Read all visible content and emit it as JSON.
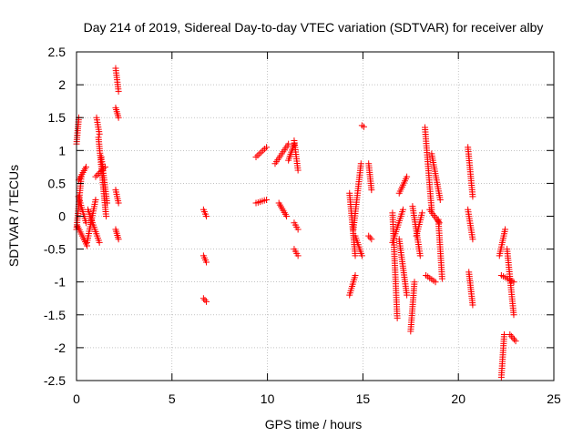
{
  "colors": {
    "series": "#ff0000",
    "axis": "#000000",
    "grid": "#a0a0a0",
    "background": "#ffffff"
  },
  "chart_data": {
    "type": "scatter",
    "title": "Day 214 of 2019, Sidereal Day-to-day VTEC variation (SDTVAR) for receiver alby",
    "xlabel": "GPS time / hours",
    "ylabel": "SDTVAR / TECUs",
    "xlim": [
      0,
      25
    ],
    "ylim": [
      -2.5,
      2.5
    ],
    "xticks": [
      0,
      5,
      10,
      15,
      20,
      25
    ],
    "xtick_labels": [
      "0",
      "5",
      "10",
      "15",
      "20",
      "25"
    ],
    "yticks": [
      -2.5,
      -2,
      -1.5,
      -1,
      -0.5,
      0,
      0.5,
      1,
      1.5,
      2,
      2.5
    ],
    "ytick_labels": [
      "-2.5",
      "-2",
      "-1.5",
      "-1",
      "-0.5",
      "0",
      "0.5",
      "1",
      "1.5",
      "2",
      "2.5"
    ],
    "grid": true,
    "marker": "+",
    "series": [
      {
        "name": "SDTVAR",
        "segments": [
          {
            "x": [
              0.0,
              0.12
            ],
            "y": [
              1.1,
              1.5
            ]
          },
          {
            "x": [
              0.0,
              0.25
            ],
            "y": [
              -0.2,
              0.6
            ]
          },
          {
            "x": [
              0.12,
              0.5
            ],
            "y": [
              0.55,
              0.75
            ]
          },
          {
            "x": [
              0.05,
              0.55
            ],
            "y": [
              -0.15,
              -0.45
            ]
          },
          {
            "x": [
              0.1,
              0.5
            ],
            "y": [
              0.3,
              -0.1
            ]
          },
          {
            "x": [
              0.55,
              1.0
            ],
            "y": [
              -0.4,
              0.25
            ]
          },
          {
            "x": [
              0.6,
              1.2
            ],
            "y": [
              0.1,
              -0.4
            ]
          },
          {
            "x": [
              1.0,
              1.5
            ],
            "y": [
              0.6,
              0.75
            ]
          },
          {
            "x": [
              1.15,
              1.55
            ],
            "y": [
              1.2,
              0.0
            ]
          },
          {
            "x": [
              1.05,
              1.2
            ],
            "y": [
              1.5,
              1.25
            ]
          },
          {
            "x": [
              1.3,
              1.6
            ],
            "y": [
              0.9,
              0.2
            ]
          },
          {
            "x": [
              2.05,
              2.2
            ],
            "y": [
              2.25,
              1.9
            ]
          },
          {
            "x": [
              2.05,
              2.2
            ],
            "y": [
              1.65,
              1.5
            ]
          },
          {
            "x": [
              2.05,
              2.2
            ],
            "y": [
              0.4,
              0.2
            ]
          },
          {
            "x": [
              2.05,
              2.2
            ],
            "y": [
              -0.2,
              -0.35
            ]
          },
          {
            "x": [
              6.65,
              6.8
            ],
            "y": [
              0.1,
              0.0
            ]
          },
          {
            "x": [
              6.65,
              6.8
            ],
            "y": [
              -0.6,
              -0.7
            ]
          },
          {
            "x": [
              6.65,
              6.8
            ],
            "y": [
              -1.25,
              -1.3
            ]
          },
          {
            "x": [
              9.4,
              9.95
            ],
            "y": [
              0.9,
              1.05
            ]
          },
          {
            "x": [
              9.4,
              9.95
            ],
            "y": [
              0.2,
              0.25
            ]
          },
          {
            "x": [
              10.4,
              11.1
            ],
            "y": [
              0.8,
              1.1
            ]
          },
          {
            "x": [
              10.6,
              11.0
            ],
            "y": [
              0.2,
              0.0
            ]
          },
          {
            "x": [
              11.1,
              11.4
            ],
            "y": [
              0.85,
              1.1
            ]
          },
          {
            "x": [
              11.4,
              11.6
            ],
            "y": [
              1.15,
              0.7
            ]
          },
          {
            "x": [
              11.4,
              11.6
            ],
            "y": [
              -0.1,
              -0.2
            ]
          },
          {
            "x": [
              11.4,
              11.6
            ],
            "y": [
              -0.5,
              -0.6
            ]
          },
          {
            "x": [
              14.3,
              14.6
            ],
            "y": [
              -1.2,
              -0.9
            ]
          },
          {
            "x": [
              14.3,
              14.6
            ],
            "y": [
              0.35,
              -0.6
            ]
          },
          {
            "x": [
              14.5,
              14.9
            ],
            "y": [
              -0.2,
              0.8
            ]
          },
          {
            "x": [
              14.6,
              14.95
            ],
            "y": [
              -0.3,
              -0.6
            ]
          },
          {
            "x": [
              14.95,
              15.05
            ],
            "y": [
              1.38,
              1.36
            ]
          },
          {
            "x": [
              15.3,
              15.45
            ],
            "y": [
              0.8,
              0.4
            ]
          },
          {
            "x": [
              15.3,
              15.45
            ],
            "y": [
              -0.3,
              -0.35
            ]
          },
          {
            "x": [
              16.55,
              16.8
            ],
            "y": [
              0.05,
              -1.55
            ]
          },
          {
            "x": [
              16.55,
              17.1
            ],
            "y": [
              -0.4,
              0.1
            ]
          },
          {
            "x": [
              16.9,
              17.3
            ],
            "y": [
              0.35,
              0.6
            ]
          },
          {
            "x": [
              16.9,
              17.3
            ],
            "y": [
              -0.35,
              -1.2
            ]
          },
          {
            "x": [
              17.5,
              17.7
            ],
            "y": [
              -1.75,
              -1.0
            ]
          },
          {
            "x": [
              17.6,
              18.0
            ],
            "y": [
              0.15,
              -0.6
            ]
          },
          {
            "x": [
              17.8,
              18.1
            ],
            "y": [
              -0.3,
              0.05
            ]
          },
          {
            "x": [
              18.25,
              18.6
            ],
            "y": [
              1.35,
              0.1
            ]
          },
          {
            "x": [
              18.3,
              18.8
            ],
            "y": [
              -0.9,
              -1.0
            ]
          },
          {
            "x": [
              18.6,
              19.05
            ],
            "y": [
              0.95,
              0.25
            ]
          },
          {
            "x": [
              18.5,
              19.0
            ],
            "y": [
              0.1,
              -0.1
            ]
          },
          {
            "x": [
              18.95,
              19.15
            ],
            "y": [
              -0.05,
              -0.95
            ]
          },
          {
            "x": [
              20.5,
              20.75
            ],
            "y": [
              1.05,
              0.3
            ]
          },
          {
            "x": [
              20.5,
              20.75
            ],
            "y": [
              0.1,
              -0.35
            ]
          },
          {
            "x": [
              20.55,
              20.75
            ],
            "y": [
              -0.85,
              -1.35
            ]
          },
          {
            "x": [
              22.15,
              22.45
            ],
            "y": [
              -0.6,
              -0.2
            ]
          },
          {
            "x": [
              22.25,
              22.4
            ],
            "y": [
              -2.45,
              -1.8
            ]
          },
          {
            "x": [
              22.25,
              22.9
            ],
            "y": [
              -0.9,
              -1.0
            ]
          },
          {
            "x": [
              22.55,
              22.9
            ],
            "y": [
              -0.5,
              -1.5
            ]
          },
          {
            "x": [
              22.7,
              23.0
            ],
            "y": [
              -1.8,
              -1.9
            ]
          }
        ]
      }
    ]
  }
}
